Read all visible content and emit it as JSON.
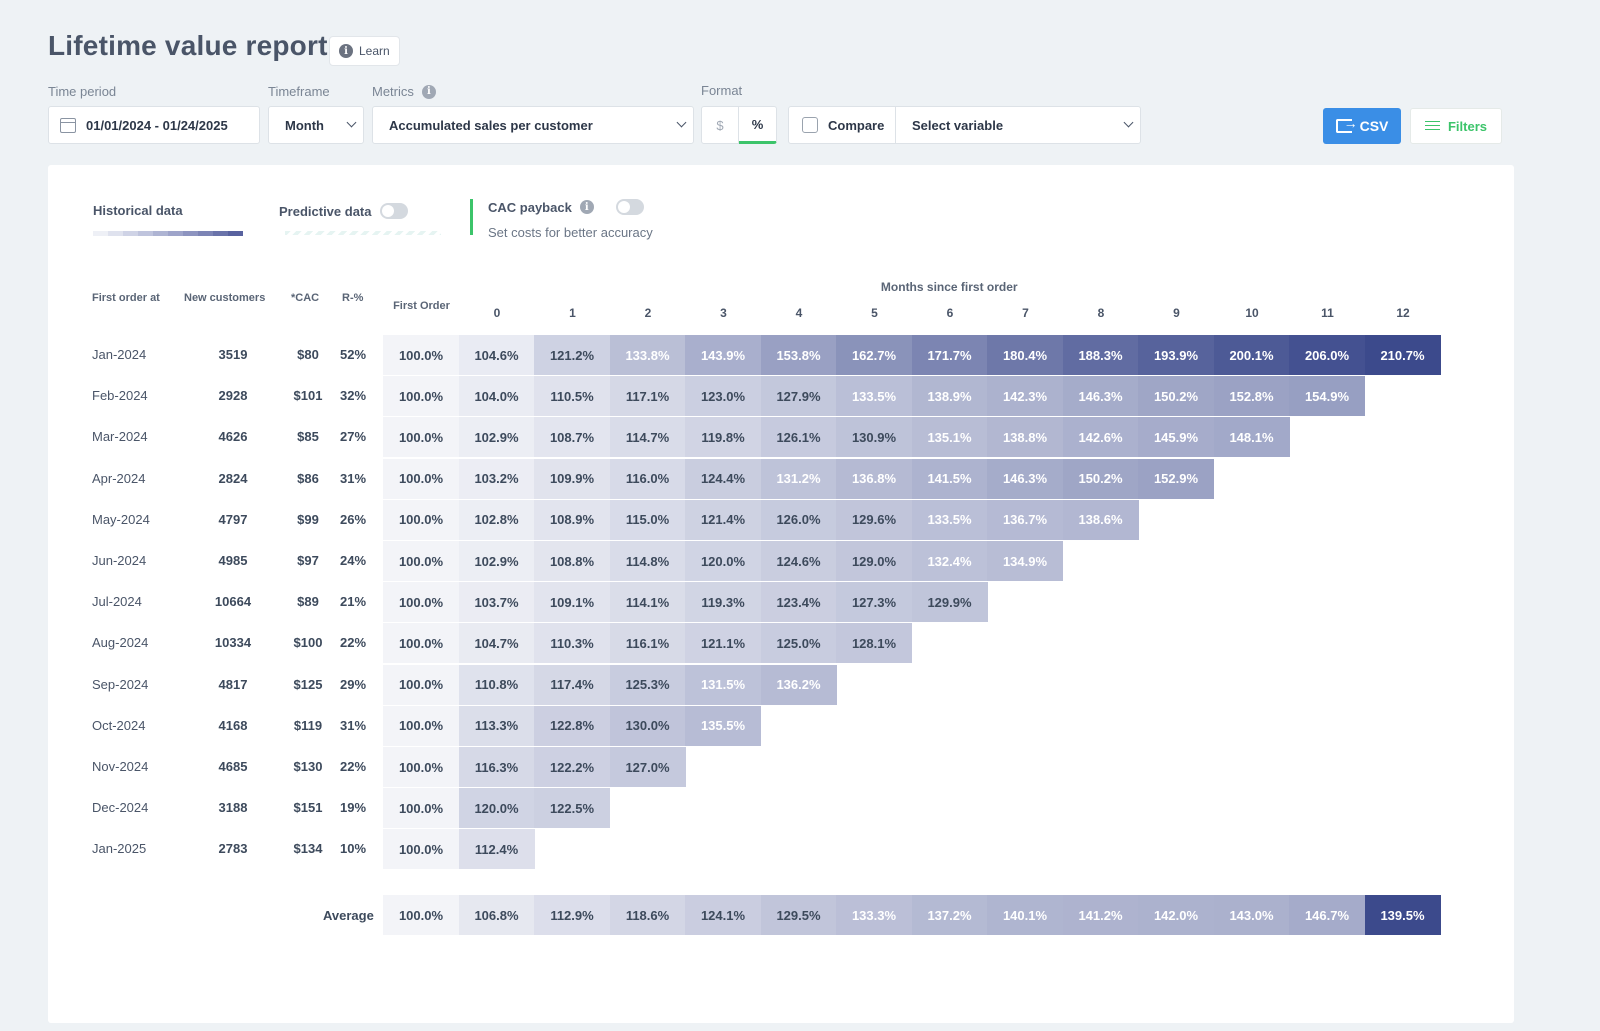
{
  "header": {
    "title": "Lifetime value report",
    "learn_label": "Learn"
  },
  "controls": {
    "time_period_label": "Time period",
    "time_period_value": "01/01/2024 - 01/24/2025",
    "timeframe_label": "Timeframe",
    "timeframe_value": "Month",
    "metrics_label": "Metrics",
    "metrics_value": "Accumulated sales per customer",
    "format_label": "Format",
    "format_dollar": "$",
    "format_percent": "%",
    "format_selected": "%",
    "compare_label": "Compare",
    "compare_checked": false,
    "variable_placeholder": "Select variable",
    "csv_label": "CSV",
    "filters_label": "Filters"
  },
  "legend": {
    "historical_label": "Historical data",
    "predictive_label": "Predictive data",
    "predictive_on": false,
    "cac_label": "CAC payback",
    "cac_on": false,
    "cac_sub": "Set costs for better accuracy"
  },
  "colors": {
    "accent_green": "#3cc46a",
    "accent_blue": "#3a8ee6",
    "heat_low": "#f1f2f7",
    "heat_high": "#3c4a8c"
  },
  "table": {
    "months_header": "Months since first order",
    "headers": {
      "first_order_at": "First order at",
      "new_customers": "New customers",
      "cac": "*CAC",
      "r_pct": "R-%",
      "first_order_col": "First Order",
      "months": [
        "0",
        "1",
        "2",
        "3",
        "4",
        "5",
        "6",
        "7",
        "8",
        "9",
        "10",
        "11",
        "12"
      ]
    },
    "rows": [
      {
        "date": "Jan-2024",
        "customers": "3519",
        "cac": "$80",
        "r": "52%",
        "first": "100.0%",
        "cells": [
          "104.6%",
          "121.2%",
          "133.8%",
          "143.9%",
          "153.8%",
          "162.7%",
          "171.7%",
          "180.4%",
          "188.3%",
          "193.9%",
          "200.1%",
          "206.0%",
          "210.7%"
        ]
      },
      {
        "date": "Feb-2024",
        "customers": "2928",
        "cac": "$101",
        "r": "32%",
        "first": "100.0%",
        "cells": [
          "104.0%",
          "110.5%",
          "117.1%",
          "123.0%",
          "127.9%",
          "133.5%",
          "138.9%",
          "142.3%",
          "146.3%",
          "150.2%",
          "152.8%",
          "154.9%"
        ]
      },
      {
        "date": "Mar-2024",
        "customers": "4626",
        "cac": "$85",
        "r": "27%",
        "first": "100.0%",
        "cells": [
          "102.9%",
          "108.7%",
          "114.7%",
          "119.8%",
          "126.1%",
          "130.9%",
          "135.1%",
          "138.8%",
          "142.6%",
          "145.9%",
          "148.1%"
        ]
      },
      {
        "date": "Apr-2024",
        "customers": "2824",
        "cac": "$86",
        "r": "31%",
        "first": "100.0%",
        "cells": [
          "103.2%",
          "109.9%",
          "116.0%",
          "124.4%",
          "131.2%",
          "136.8%",
          "141.5%",
          "146.3%",
          "150.2%",
          "152.9%"
        ]
      },
      {
        "date": "May-2024",
        "customers": "4797",
        "cac": "$99",
        "r": "26%",
        "first": "100.0%",
        "cells": [
          "102.8%",
          "108.9%",
          "115.0%",
          "121.4%",
          "126.0%",
          "129.6%",
          "133.5%",
          "136.7%",
          "138.6%"
        ]
      },
      {
        "date": "Jun-2024",
        "customers": "4985",
        "cac": "$97",
        "r": "24%",
        "first": "100.0%",
        "cells": [
          "102.9%",
          "108.8%",
          "114.8%",
          "120.0%",
          "124.6%",
          "129.0%",
          "132.4%",
          "134.9%"
        ]
      },
      {
        "date": "Jul-2024",
        "customers": "10664",
        "cac": "$89",
        "r": "21%",
        "first": "100.0%",
        "cells": [
          "103.7%",
          "109.1%",
          "114.1%",
          "119.3%",
          "123.4%",
          "127.3%",
          "129.9%"
        ]
      },
      {
        "date": "Aug-2024",
        "customers": "10334",
        "cac": "$100",
        "r": "22%",
        "first": "100.0%",
        "cells": [
          "104.7%",
          "110.3%",
          "116.1%",
          "121.1%",
          "125.0%",
          "128.1%"
        ]
      },
      {
        "date": "Sep-2024",
        "customers": "4817",
        "cac": "$125",
        "r": "29%",
        "first": "100.0%",
        "cells": [
          "110.8%",
          "117.4%",
          "125.3%",
          "131.5%",
          "136.2%"
        ]
      },
      {
        "date": "Oct-2024",
        "customers": "4168",
        "cac": "$119",
        "r": "31%",
        "first": "100.0%",
        "cells": [
          "113.3%",
          "122.8%",
          "130.0%",
          "135.5%"
        ]
      },
      {
        "date": "Nov-2024",
        "customers": "4685",
        "cac": "$130",
        "r": "22%",
        "first": "100.0%",
        "cells": [
          "116.3%",
          "122.2%",
          "127.0%"
        ]
      },
      {
        "date": "Dec-2024",
        "customers": "3188",
        "cac": "$151",
        "r": "19%",
        "first": "100.0%",
        "cells": [
          "120.0%",
          "122.5%"
        ]
      },
      {
        "date": "Jan-2025",
        "customers": "2783",
        "cac": "$134",
        "r": "10%",
        "first": "100.0%",
        "cells": [
          "112.4%"
        ]
      }
    ],
    "average": {
      "label": "Average",
      "first": "100.0%",
      "cells": [
        "106.8%",
        "112.9%",
        "118.6%",
        "124.1%",
        "129.5%",
        "133.3%",
        "137.2%",
        "140.1%",
        "141.2%",
        "142.0%",
        "143.0%",
        "146.7%",
        "139.5%"
      ]
    }
  }
}
